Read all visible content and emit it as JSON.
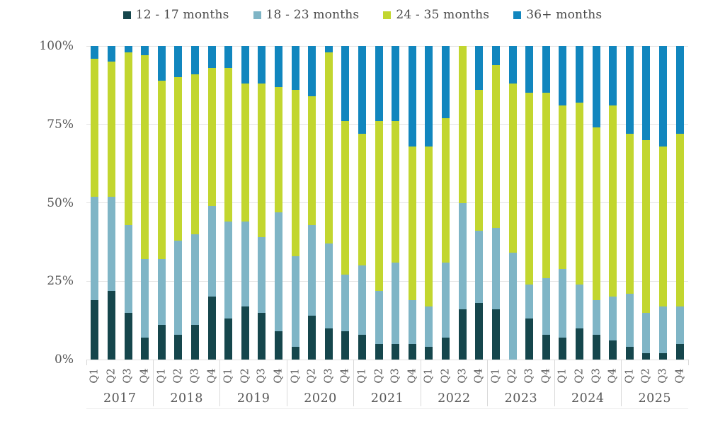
{
  "background_color": "#ffffff",
  "text_color_axis": "#595959",
  "text_color_legend": "#4a4a4a",
  "gridline_color": "#e3e3e3",
  "divider_color": "#d9d9d9",
  "chart_data": {
    "type": "bar",
    "stacked": true,
    "stack_total": 100,
    "orientation": "vertical",
    "title": "",
    "xlabel": "",
    "ylabel": "",
    "ylim": [
      0,
      100
    ],
    "grid": true,
    "legend_position": "top",
    "y_ticks": [
      "0%",
      "25%",
      "50%",
      "75%",
      "100%"
    ],
    "groups": [
      {
        "year": "2017",
        "quarters": [
          "Q1",
          "Q2",
          "Q3",
          "Q4"
        ]
      },
      {
        "year": "2018",
        "quarters": [
          "Q1",
          "Q2",
          "Q3",
          "Q4"
        ]
      },
      {
        "year": "2019",
        "quarters": [
          "Q1",
          "Q2",
          "Q3",
          "Q4"
        ]
      },
      {
        "year": "2020",
        "quarters": [
          "Q1",
          "Q2",
          "Q3",
          "Q4"
        ]
      },
      {
        "year": "2021",
        "quarters": [
          "Q1",
          "Q2",
          "Q3",
          "Q4"
        ]
      },
      {
        "year": "2022",
        "quarters": [
          "Q1",
          "Q2",
          "Q3",
          "Q4"
        ]
      },
      {
        "year": "2023",
        "quarters": [
          "Q1",
          "Q2",
          "Q3",
          "Q4"
        ]
      },
      {
        "year": "2024",
        "quarters": [
          "Q1",
          "Q2",
          "Q3",
          "Q4"
        ]
      },
      {
        "year": "2025",
        "quarters": [
          "Q1",
          "Q2",
          "Q3",
          "Q4"
        ]
      }
    ],
    "series": [
      {
        "name": "12 - 17 months",
        "color": "#15464c",
        "values": [
          19,
          22,
          15,
          7,
          11,
          8,
          11,
          20,
          13,
          17,
          15,
          9,
          4,
          14,
          10,
          9,
          8,
          5,
          5,
          5,
          4,
          7,
          16,
          18,
          16,
          0,
          13,
          8,
          7,
          10,
          8,
          6,
          4,
          2,
          2,
          5
        ]
      },
      {
        "name": "18 - 23 months",
        "color": "#7fb5c6",
        "values": [
          33,
          30,
          28,
          25,
          21,
          30,
          29,
          29,
          31,
          27,
          24,
          38,
          29,
          29,
          27,
          18,
          22,
          17,
          26,
          14,
          13,
          24,
          34,
          23,
          26,
          34,
          11,
          18,
          22,
          14,
          11,
          14,
          17,
          13,
          15,
          12
        ]
      },
      {
        "name": "24 - 35 months",
        "color": "#c2d62f",
        "values": [
          44,
          43,
          55,
          65,
          57,
          52,
          51,
          44,
          49,
          44,
          49,
          40,
          53,
          41,
          61,
          49,
          42,
          54,
          45,
          49,
          51,
          46,
          50,
          45,
          52,
          54,
          61,
          59,
          52,
          58,
          55,
          61,
          51,
          55,
          51,
          55
        ]
      },
      {
        "name": "36+ months",
        "color": "#1186be",
        "values": [
          4,
          5,
          2,
          3,
          11,
          10,
          9,
          7,
          7,
          12,
          12,
          13,
          14,
          16,
          2,
          24,
          28,
          24,
          24,
          32,
          32,
          23,
          0,
          14,
          6,
          12,
          15,
          15,
          19,
          18,
          26,
          19,
          28,
          30,
          32,
          28
        ]
      }
    ]
  }
}
